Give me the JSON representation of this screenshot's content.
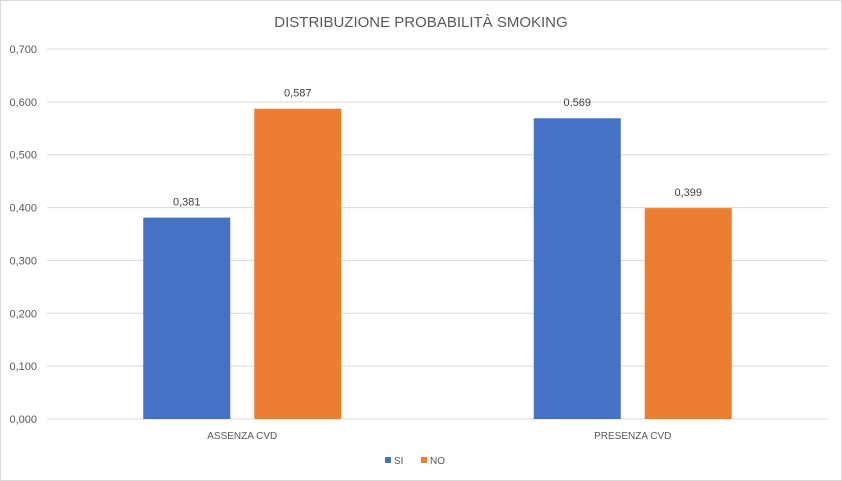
{
  "chart_data": {
    "type": "bar",
    "title": "DISTRIBUZIONE PROBABILITÀ SMOKING",
    "categories": [
      "ASSENZA CVD",
      "PRESENZA CVD"
    ],
    "series": [
      {
        "name": "SI",
        "values": [
          0.381,
          0.569
        ],
        "labels": [
          "0,381",
          "0,569"
        ],
        "color": "#4472C4"
      },
      {
        "name": "NO",
        "values": [
          0.587,
          0.399
        ],
        "labels": [
          "0,587",
          "0,399"
        ],
        "color": "#ED7D31"
      }
    ],
    "ylim": [
      0,
      0.7
    ],
    "yticks": [
      0,
      0.1,
      0.2,
      0.3,
      0.4,
      0.5,
      0.6,
      0.7
    ],
    "ytick_labels": [
      "0,000",
      "0,100",
      "0,200",
      "0,300",
      "0,400",
      "0,500",
      "0,600",
      "0,700"
    ],
    "grid": true,
    "legend": "bottom"
  }
}
